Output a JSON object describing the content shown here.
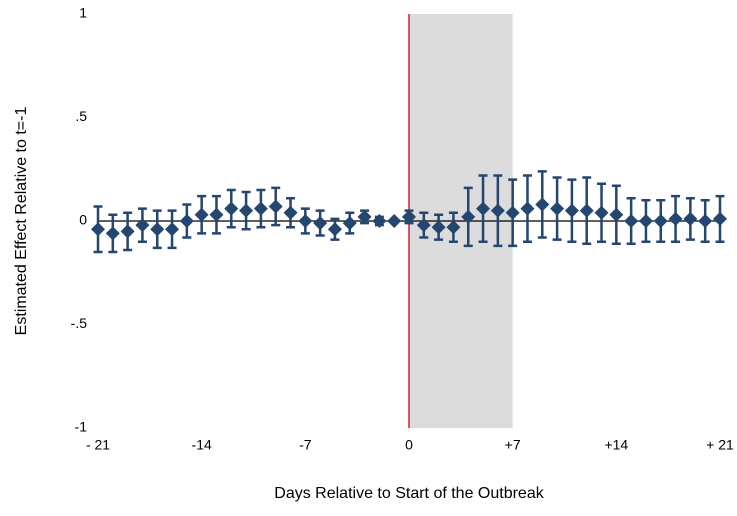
{
  "chart_data": {
    "type": "errorbar",
    "xlabel": "Days Relative to Start of the Outbreak",
    "ylabel": "Estimated Effect Relative to t=-1",
    "x": [
      -21,
      -20,
      -19,
      -18,
      -17,
      -16,
      -15,
      -14,
      -13,
      -12,
      -11,
      -10,
      -9,
      -8,
      -7,
      -6,
      -5,
      -4,
      -3,
      -2,
      -1,
      0,
      1,
      2,
      3,
      4,
      5,
      6,
      7,
      8,
      9,
      10,
      11,
      12,
      13,
      14,
      15,
      16,
      17,
      18,
      19,
      20,
      21
    ],
    "values": [
      -0.04,
      -0.06,
      -0.05,
      -0.02,
      -0.04,
      -0.04,
      0.0,
      0.03,
      0.03,
      0.06,
      0.05,
      0.06,
      0.07,
      0.04,
      0.0,
      -0.01,
      -0.04,
      -0.01,
      0.02,
      0.0,
      0.0,
      0.02,
      -0.02,
      -0.03,
      -0.03,
      0.02,
      0.06,
      0.05,
      0.04,
      0.06,
      0.08,
      0.06,
      0.05,
      0.05,
      0.04,
      0.03,
      0.0,
      0.0,
      0.0,
      0.01,
      0.01,
      0.0,
      0.01
    ],
    "errors": [
      0.11,
      0.09,
      0.09,
      0.08,
      0.09,
      0.09,
      0.08,
      0.09,
      0.09,
      0.09,
      0.09,
      0.09,
      0.09,
      0.07,
      0.06,
      0.06,
      0.05,
      0.05,
      0.03,
      0.02,
      0,
      0.03,
      0.06,
      0.06,
      0.07,
      0.14,
      0.16,
      0.17,
      0.16,
      0.16,
      0.16,
      0.15,
      0.15,
      0.16,
      0.14,
      0.14,
      0.11,
      0.1,
      0.1,
      0.11,
      0.1,
      0.1,
      0.11
    ],
    "color": "#24466f",
    "xlim": [
      -21,
      21
    ],
    "ylim": [
      -1,
      1
    ],
    "xticks": [
      {
        "value": -21,
        "label": "- 21"
      },
      -14,
      -7,
      0,
      {
        "value": 7,
        "label": "+7"
      },
      {
        "value": 14,
        "label": "+14"
      },
      {
        "value": 21,
        "label": "+ 21"
      }
    ],
    "yticks": [
      -1,
      {
        "value": -0.5,
        "label": "-.5"
      },
      0,
      {
        "value": 0.5,
        "label": ".5"
      },
      1
    ],
    "shaded_region": [
      0,
      7
    ],
    "shade_color": "#dcdcdc",
    "vline": 0,
    "vline_color": "#d0213c",
    "hline": 0
  }
}
